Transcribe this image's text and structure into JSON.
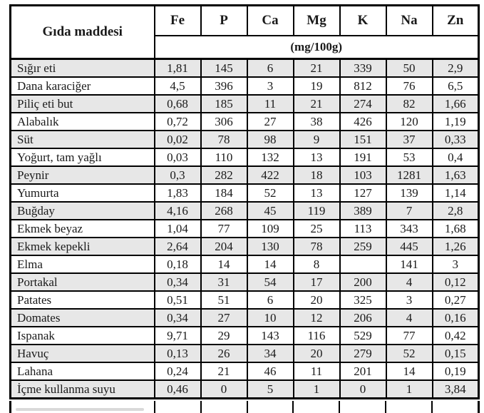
{
  "table": {
    "food_column_header": "Gıda maddesi",
    "unit_label": "(mg/100g)",
    "columns": [
      "Fe",
      "P",
      "Ca",
      "Mg",
      "K",
      "Na",
      "Zn"
    ],
    "rows": [
      {
        "name": "Sığır eti",
        "values": [
          "1,81",
          "145",
          "6",
          "21",
          "339",
          "50",
          "2,9"
        ]
      },
      {
        "name": "Dana karaciğer",
        "values": [
          "4,5",
          "396",
          "3",
          "19",
          "812",
          "76",
          "6,5"
        ]
      },
      {
        "name": "Piliç eti but",
        "values": [
          "0,68",
          "185",
          "11",
          "21",
          "274",
          "82",
          "1,66"
        ]
      },
      {
        "name": "Alabalık",
        "values": [
          "0,72",
          "306",
          "27",
          "38",
          "426",
          "120",
          "1,19"
        ]
      },
      {
        "name": "Süt",
        "values": [
          "0,02",
          "78",
          "98",
          "9",
          "151",
          "37",
          "0,33"
        ]
      },
      {
        "name": "Yoğurt, tam yağlı",
        "values": [
          "0,03",
          "110",
          "132",
          "13",
          "191",
          "53",
          "0,4"
        ]
      },
      {
        "name": "Peynir",
        "values": [
          "0,3",
          "282",
          "422",
          "18",
          "103",
          "1281",
          "1,63"
        ]
      },
      {
        "name": "Yumurta",
        "values": [
          "1,83",
          "184",
          "52",
          "13",
          "127",
          "139",
          "1,14"
        ]
      },
      {
        "name": "Buğday",
        "values": [
          "4,16",
          "268",
          "45",
          "119",
          "389",
          "7",
          "2,8"
        ]
      },
      {
        "name": "Ekmek beyaz",
        "values": [
          "1,04",
          "77",
          "109",
          "25",
          "113",
          "343",
          "1,68"
        ]
      },
      {
        "name": "Ekmek kepekli",
        "values": [
          "2,64",
          "204",
          "130",
          "78",
          "259",
          "445",
          "1,26"
        ]
      },
      {
        "name": "Elma",
        "values": [
          "0,18",
          "14",
          "14",
          "8",
          "",
          "141",
          "3"
        ]
      },
      {
        "name": "Portakal",
        "values": [
          "0,34",
          "31",
          "54",
          "17",
          "200",
          "4",
          "0,12"
        ]
      },
      {
        "name": "Patates",
        "values": [
          "0,51",
          "51",
          "6",
          "20",
          "325",
          "3",
          "0,27"
        ]
      },
      {
        "name": "Domates",
        "values": [
          "0,34",
          "27",
          "10",
          "12",
          "206",
          "4",
          "0,16"
        ]
      },
      {
        "name": "Ispanak",
        "values": [
          "9,71",
          "29",
          "143",
          "116",
          "529",
          "77",
          "0,42"
        ]
      },
      {
        "name": "Havuç",
        "values": [
          "0,13",
          "26",
          "34",
          "20",
          "279",
          "52",
          "0,15"
        ]
      },
      {
        "name": "Lahana",
        "values": [
          "0,24",
          "21",
          "46",
          "11",
          "201",
          "14",
          "0,19"
        ]
      },
      {
        "name": "İçme kullanma suyu",
        "values": [
          "0,46",
          "0",
          "5",
          "1",
          "0",
          "1",
          "3,84"
        ]
      }
    ],
    "colors": {
      "row_shading": "#e7e7e7",
      "border": "#000000",
      "text": "#1a1a1a",
      "background": "#ffffff"
    }
  }
}
